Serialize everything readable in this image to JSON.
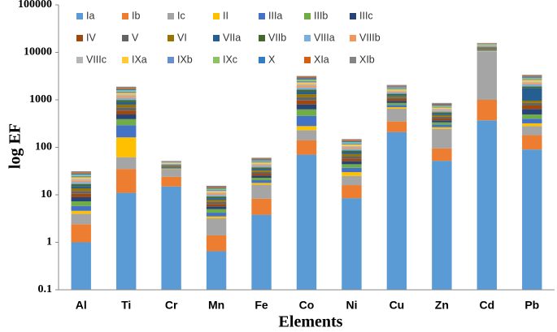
{
  "chart_data": {
    "type": "stacked_bar",
    "log_scale": true,
    "x_label": "Elements",
    "y_label": "log EF",
    "categories": [
      "Al",
      "Ti",
      "Cr",
      "Mn",
      "Fe",
      "Co",
      "Ni",
      "Cu",
      "Zn",
      "Cd",
      "Pb"
    ],
    "ylim": [
      0.1,
      100000
    ],
    "yticks": [
      0.1,
      1,
      10,
      100,
      1000,
      10000,
      100000
    ],
    "legend": "upper left",
    "series": [
      {
        "name": "Ia",
        "color": "#5b9bd5",
        "values": [
          1.0,
          11,
          15,
          0.65,
          3.8,
          70,
          8.5,
          210,
          52,
          370,
          90
        ]
      },
      {
        "name": "Ib",
        "color": "#ed7d31",
        "values": [
          1.4,
          24,
          9,
          0.75,
          4.5,
          70,
          7.5,
          140,
          43,
          630,
          90
        ]
      },
      {
        "name": "Ic",
        "color": "#a5a5a5",
        "values": [
          1.6,
          27,
          10,
          1.8,
          8,
          90,
          9,
          300,
          150,
          9500,
          100
        ]
      },
      {
        "name": "II",
        "color": "#ffc000",
        "values": [
          0.6,
          100,
          0.8,
          0.3,
          1.5,
          50,
          5,
          50,
          20,
          200,
          40
        ]
      },
      {
        "name": "IIIa",
        "color": "#4472c4",
        "values": [
          1.2,
          130,
          1,
          0.7,
          2.5,
          180,
          7,
          80,
          35,
          300,
          80
        ]
      },
      {
        "name": "IIIb",
        "color": "#70ad47",
        "values": [
          1.5,
          100,
          1,
          0.8,
          2.5,
          170,
          7,
          80,
          35,
          300,
          90
        ]
      },
      {
        "name": "IIIc",
        "color": "#264478",
        "values": [
          1.6,
          100,
          1,
          0.7,
          2.5,
          170,
          7,
          80,
          35,
          300,
          150
        ]
      },
      {
        "name": "IV",
        "color": "#9e480e",
        "values": [
          1.6,
          100,
          1,
          0.7,
          2.5,
          170,
          7,
          80,
          35,
          300,
          120
        ]
      },
      {
        "name": "V",
        "color": "#636363",
        "values": [
          1.6,
          100,
          1,
          0.7,
          2.5,
          170,
          7,
          80,
          35,
          300,
          100
        ]
      },
      {
        "name": "VI",
        "color": "#997300",
        "values": [
          1.6,
          100,
          1,
          0.7,
          2.5,
          170,
          7,
          80,
          35,
          300,
          100
        ]
      },
      {
        "name": "VIIa",
        "color": "#255e91",
        "values": [
          1.6,
          100,
          1,
          0.7,
          2.5,
          170,
          7,
          80,
          35,
          300,
          800
        ]
      },
      {
        "name": "VIIb",
        "color": "#43682b",
        "values": [
          1.6,
          100,
          1,
          0.7,
          2.5,
          170,
          7,
          80,
          35,
          300,
          150
        ]
      },
      {
        "name": "VIIIa",
        "color": "#7cafdd",
        "values": [
          1.6,
          100,
          1,
          0.7,
          2.5,
          170,
          7,
          80,
          35,
          300,
          200
        ]
      },
      {
        "name": "VIIIb",
        "color": "#f1975a",
        "values": [
          1.6,
          100,
          1,
          0.7,
          2.5,
          170,
          7,
          80,
          35,
          300,
          150
        ]
      },
      {
        "name": "VIIIc",
        "color": "#b7b7b7",
        "values": [
          1.6,
          100,
          1,
          0.7,
          2.5,
          170,
          7,
          80,
          35,
          300,
          150
        ]
      },
      {
        "name": "IXa",
        "color": "#ffcd33",
        "values": [
          1.6,
          100,
          1,
          0.7,
          2.5,
          170,
          7,
          80,
          35,
          300,
          200
        ]
      },
      {
        "name": "IXb",
        "color": "#698ed0",
        "values": [
          1.6,
          100,
          1,
          0.7,
          2.5,
          170,
          7,
          80,
          35,
          300,
          150
        ]
      },
      {
        "name": "IXc",
        "color": "#8cc168",
        "values": [
          1.6,
          100,
          1,
          0.7,
          2.5,
          170,
          7,
          80,
          35,
          300,
          150
        ]
      },
      {
        "name": "X",
        "color": "#327dc2",
        "values": [
          1.6,
          100,
          1,
          0.7,
          2.5,
          170,
          7,
          80,
          35,
          300,
          150
        ]
      },
      {
        "name": "XIa",
        "color": "#d26012",
        "values": [
          1.6,
          100,
          1,
          0.7,
          2.5,
          170,
          7,
          80,
          35,
          300,
          150
        ]
      },
      {
        "name": "XIb",
        "color": "#848484",
        "values": [
          1.6,
          100,
          1,
          0.7,
          2.5,
          170,
          7,
          80,
          35,
          300,
          150
        ]
      }
    ]
  }
}
